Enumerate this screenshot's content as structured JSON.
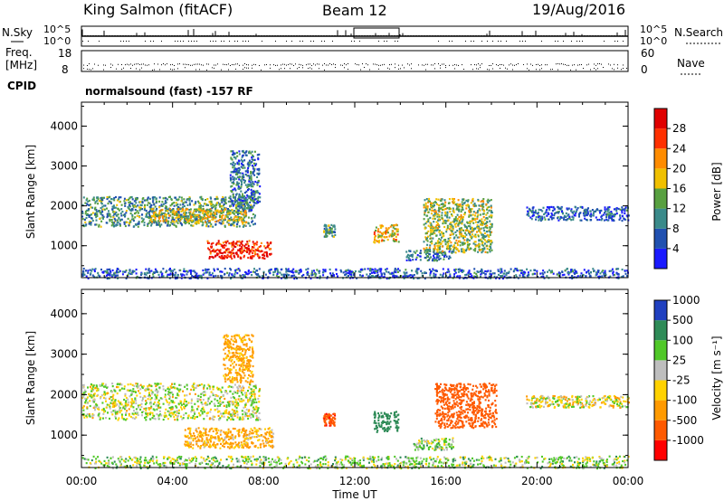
{
  "header": {
    "station": "King Salmon (fitACF)",
    "beam": "Beam 12",
    "date": "19/Aug/2016"
  },
  "top_panels": {
    "nsky_label": "N.Sky",
    "nsky_ticks": [
      "10^5",
      "10^0"
    ],
    "nsearch_label": "N.Search",
    "nsearch_ticks": [
      "10^5",
      "10^0"
    ],
    "freq_label_1": "Freq.",
    "freq_label_2": "[MHz]",
    "freq_ticks": [
      "18",
      "8"
    ],
    "nave_label": "Nave",
    "nave_ticks": [
      "60",
      "0"
    ],
    "cpid_label": "CPID",
    "cpid_text": "normalsound (fast) -157 RF"
  },
  "colors": {
    "power_scale": [
      "#1a1aff",
      "#2050b0",
      "#3a8a8a",
      "#58a040",
      "#f0c000",
      "#ff8c00",
      "#ff3000",
      "#e00000"
    ],
    "velocity_scale": [
      "#ff0000",
      "#ff5a00",
      "#ff9a00",
      "#ffd200",
      "#bebebe",
      "#50c828",
      "#2e8b57",
      "#2040c0"
    ]
  },
  "chart_data": [
    {
      "type": "heatmap",
      "title": "",
      "xlabel": "Time UT",
      "ylabel": "Slant Range [km]",
      "xlim": [
        0,
        24
      ],
      "ylim": [
        200,
        4600
      ],
      "x_ticks": [
        "00:00",
        "04:00",
        "08:00",
        "12:00",
        "16:00",
        "20:00",
        "00:00"
      ],
      "y_ticks": [
        "1000",
        "2000",
        "3000",
        "4000"
      ],
      "colorbar": {
        "label": "Power [dB]",
        "ticks": [
          "4",
          "8",
          "12",
          "16",
          "20",
          "24",
          "28"
        ],
        "range": [
          0,
          30
        ]
      },
      "regions": [
        {
          "t0": 0.0,
          "t1": 7.6,
          "r0": 1500,
          "r1": 2250,
          "value": 10
        },
        {
          "t0": 3.0,
          "t1": 7.2,
          "r0": 1600,
          "r1": 1950,
          "value": 16
        },
        {
          "t0": 5.5,
          "t1": 8.3,
          "r0": 700,
          "r1": 1150,
          "value": 26
        },
        {
          "t0": 6.5,
          "t1": 7.8,
          "r0": 1900,
          "r1": 3400,
          "value": 8
        },
        {
          "t0": 10.6,
          "t1": 11.1,
          "r0": 1250,
          "r1": 1550,
          "value": 12
        },
        {
          "t0": 12.8,
          "t1": 13.9,
          "r0": 1100,
          "r1": 1550,
          "value": 18
        },
        {
          "t0": 14.2,
          "t1": 16.3,
          "r0": 650,
          "r1": 900,
          "value": 8
        },
        {
          "t0": 15.0,
          "t1": 18.0,
          "r0": 850,
          "r1": 2200,
          "value": 14
        },
        {
          "t0": 19.5,
          "t1": 24.0,
          "r0": 1650,
          "r1": 2000,
          "value": 6
        },
        {
          "t0": 0.0,
          "t1": 24.0,
          "r0": 200,
          "r1": 450,
          "value": 6
        }
      ]
    },
    {
      "type": "heatmap",
      "title": "",
      "xlabel": "Time UT",
      "ylabel": "Slant Range [km]",
      "xlim": [
        0,
        24
      ],
      "ylim": [
        200,
        4600
      ],
      "x_ticks": [
        "00:00",
        "04:00",
        "08:00",
        "12:00",
        "16:00",
        "20:00",
        "00:00"
      ],
      "y_ticks": [
        "1000",
        "2000",
        "3000",
        "4000"
      ],
      "colorbar": {
        "label": "Velocity [m s⁻¹]",
        "ticks": [
          "-1000",
          "-500",
          "-100",
          "-25",
          "25",
          "100",
          "500",
          "1000"
        ],
        "range": [
          -1500,
          1500
        ]
      },
      "regions": [
        {
          "t0": 0.0,
          "t1": 7.8,
          "r0": 1400,
          "r1": 2300,
          "value": 0
        },
        {
          "t0": 6.2,
          "t1": 7.5,
          "r0": 2300,
          "r1": 3500,
          "value": -200
        },
        {
          "t0": 4.5,
          "t1": 8.4,
          "r0": 700,
          "r1": 1200,
          "value": -150
        },
        {
          "t0": 10.6,
          "t1": 11.1,
          "r0": 1250,
          "r1": 1550,
          "value": -700
        },
        {
          "t0": 12.8,
          "t1": 13.9,
          "r0": 1100,
          "r1": 1600,
          "value": 300
        },
        {
          "t0": 14.5,
          "t1": 16.3,
          "r0": 650,
          "r1": 950,
          "value": 60
        },
        {
          "t0": 15.5,
          "t1": 18.2,
          "r0": 1200,
          "r1": 2300,
          "value": -600
        },
        {
          "t0": 19.5,
          "t1": 24.0,
          "r0": 1700,
          "r1": 2000,
          "value": -40
        },
        {
          "t0": 0.0,
          "t1": 24.0,
          "r0": 200,
          "r1": 500,
          "value": 50
        }
      ]
    }
  ]
}
